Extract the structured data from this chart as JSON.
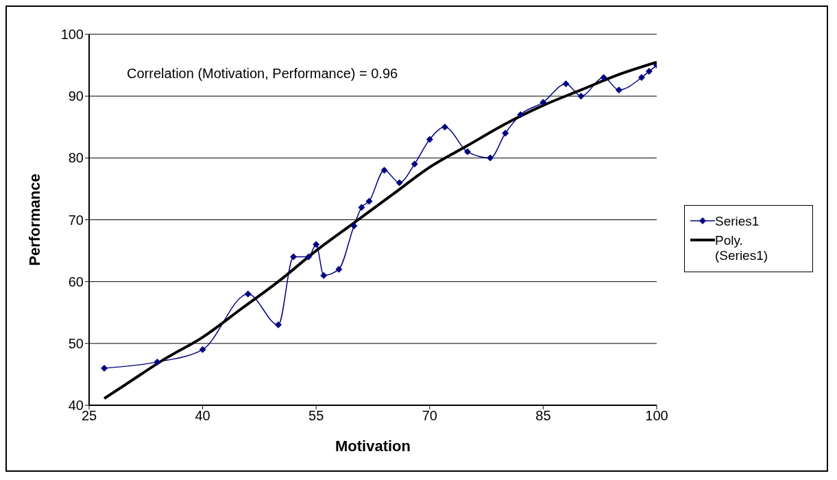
{
  "chart_data": {
    "type": "line",
    "xlabel": "Motivation",
    "ylabel": "Performance",
    "annotations": [
      "Correlation (Motivation, Performance) = 0.96"
    ],
    "xlim": [
      25,
      100
    ],
    "xticks": [
      25,
      40,
      55,
      70,
      85,
      100
    ],
    "ylim": [
      40,
      100
    ],
    "yticks": [
      40,
      50,
      60,
      70,
      80,
      90,
      100
    ],
    "grid": "y",
    "legend": "right",
    "marker": "diamond",
    "line_style": "solid",
    "series": [
      {
        "name": "Series1",
        "color": "#000080",
        "x": [
          27,
          34,
          40,
          46,
          50,
          52,
          54,
          55,
          56,
          58,
          60,
          61,
          62,
          64,
          66,
          68,
          70,
          72,
          75,
          78,
          80,
          82,
          85,
          88,
          90,
          93,
          95,
          98,
          99,
          100
        ],
        "values": [
          46,
          47,
          49,
          58,
          53,
          64,
          64,
          66,
          61,
          62,
          69,
          72,
          73,
          78,
          76,
          79,
          83,
          85,
          81,
          80,
          84,
          87,
          89,
          92,
          90,
          93,
          91,
          93,
          94,
          95
        ]
      },
      {
        "name": "Poly. (Series1)",
        "color": "#000000",
        "marker": "none",
        "x": [
          27,
          30,
          35,
          40,
          45,
          50,
          55,
          60,
          65,
          70,
          75,
          80,
          85,
          90,
          95,
          100
        ],
        "values": [
          41.1,
          43.5,
          47.5,
          51,
          55.5,
          60,
          65,
          69.5,
          74,
          78.5,
          82,
          85.5,
          88.5,
          91,
          93.5,
          95.5
        ]
      }
    ]
  }
}
